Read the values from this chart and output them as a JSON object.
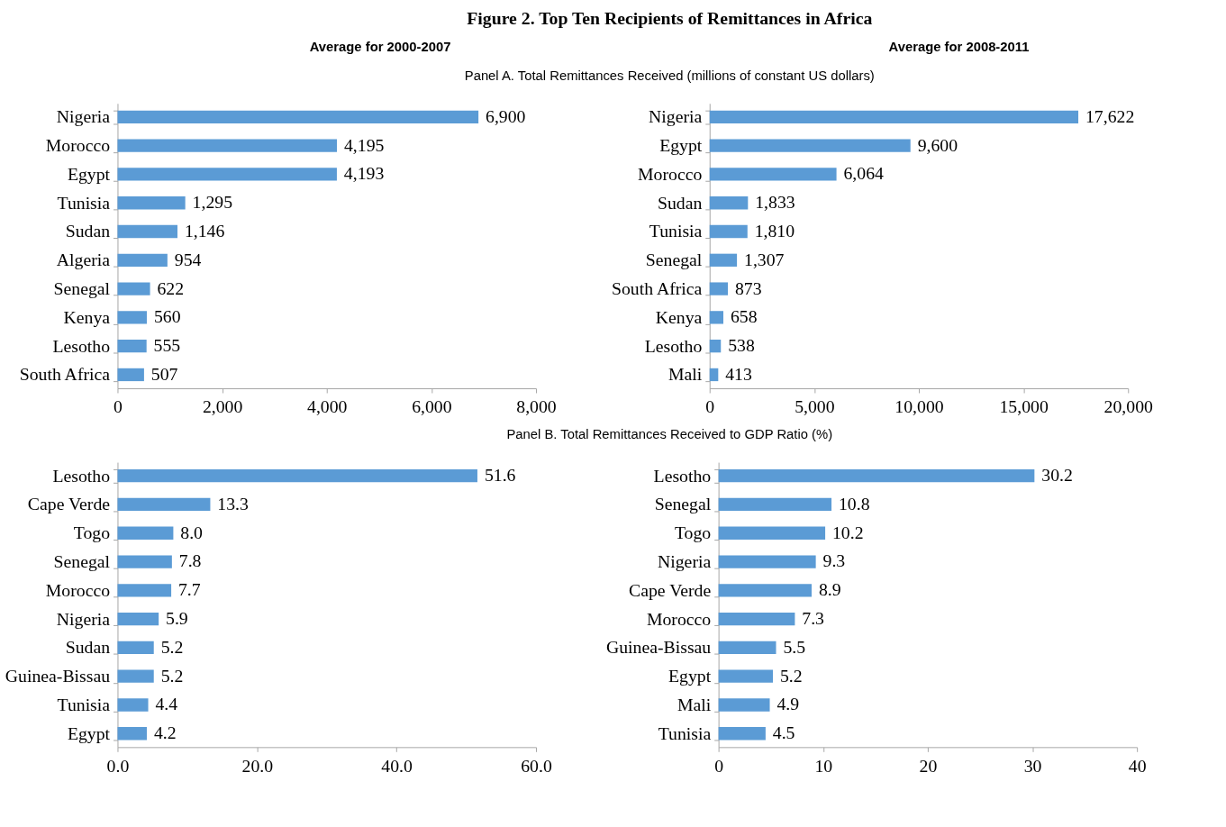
{
  "chart_data": [
    {
      "type": "bar",
      "orientation": "horizontal",
      "title": "Figure 2. Top Ten Recipients of Remittances in Africa",
      "subtitle": "Average for 2000-2007",
      "annotations": [
        "Panel A. Total Remittances Received (millions of constant US dollars)"
      ],
      "categories": [
        "Nigeria",
        "Morocco",
        "Egypt",
        "Tunisia",
        "Sudan",
        "Algeria",
        "Senegal",
        "Kenya",
        "Lesotho",
        "South Africa"
      ],
      "values": [
        6900,
        4195,
        4193,
        1295,
        1146,
        954,
        622,
        560,
        555,
        507
      ],
      "value_labels": [
        "6,900",
        "4,195",
        "4,193",
        "1,295",
        "1,146",
        "954",
        "622",
        "560",
        "555",
        "507"
      ],
      "color": "#5b9bd5",
      "xlim": [
        0,
        8000
      ],
      "xticks": [
        0,
        {
          "value": 2000,
          "label": "2,000"
        },
        {
          "value": 4000,
          "label": "4,000"
        },
        {
          "value": 6000,
          "label": "6,000"
        },
        {
          "value": 8000,
          "label": "8,000"
        }
      ]
    },
    {
      "type": "bar",
      "orientation": "horizontal",
      "subtitle": "Average for 2008-2011",
      "categories": [
        "Nigeria",
        "Egypt",
        "Morocco",
        "Sudan",
        "Tunisia",
        "Senegal",
        "South Africa",
        "Kenya",
        "Lesotho",
        "Mali"
      ],
      "values": [
        17622,
        9600,
        6064,
        1833,
        1810,
        1307,
        873,
        658,
        538,
        413
      ],
      "value_labels": [
        "17,622",
        "9,600",
        "6,064",
        "1,833",
        "1,810",
        "1,307",
        "873",
        "658",
        "538",
        "413"
      ],
      "color": "#5b9bd5",
      "xlim": [
        0,
        20000
      ],
      "xticks": [
        0,
        {
          "value": 5000,
          "label": "5,000"
        },
        {
          "value": 10000,
          "label": "10,000"
        },
        {
          "value": 15000,
          "label": "15,000"
        },
        {
          "value": 20000,
          "label": "20,000"
        }
      ]
    },
    {
      "type": "bar",
      "orientation": "horizontal",
      "annotations": [
        "Panel B. Total Remittances Received to GDP Ratio (%)"
      ],
      "categories": [
        "Lesotho",
        "Cape Verde",
        "Togo",
        "Senegal",
        "Morocco",
        "Nigeria",
        "Sudan",
        "Guinea-Bissau",
        "Tunisia",
        "Egypt"
      ],
      "values": [
        51.6,
        13.3,
        8.0,
        7.8,
        7.7,
        5.9,
        5.2,
        5.2,
        4.4,
        4.2
      ],
      "value_labels": [
        "51.6",
        "13.3",
        "8.0",
        "7.8",
        "7.7",
        "5.9",
        "5.2",
        "5.2",
        "4.4",
        "4.2"
      ],
      "color": "#5b9bd5",
      "xlim": [
        0,
        60
      ],
      "xticks": [
        {
          "value": 0,
          "label": "0.0"
        },
        {
          "value": 20,
          "label": "20.0"
        },
        {
          "value": 40,
          "label": "40.0"
        },
        {
          "value": 60,
          "label": "60.0"
        }
      ]
    },
    {
      "type": "bar",
      "orientation": "horizontal",
      "categories": [
        "Lesotho",
        "Senegal",
        "Togo",
        "Nigeria",
        "Cape Verde",
        "Morocco",
        "Guinea-Bissau",
        "Egypt",
        "Mali",
        "Tunisia"
      ],
      "values": [
        30.2,
        10.8,
        10.2,
        9.3,
        8.9,
        7.3,
        5.5,
        5.2,
        4.9,
        4.5
      ],
      "value_labels": [
        "30.2",
        "10.8",
        "10.2",
        "9.3",
        "8.9",
        "7.3",
        "5.5",
        "5.2",
        "4.9",
        "4.5"
      ],
      "color": "#5b9bd5",
      "xlim": [
        0,
        40
      ],
      "xticks": [
        0,
        10,
        20,
        30,
        40
      ]
    }
  ]
}
